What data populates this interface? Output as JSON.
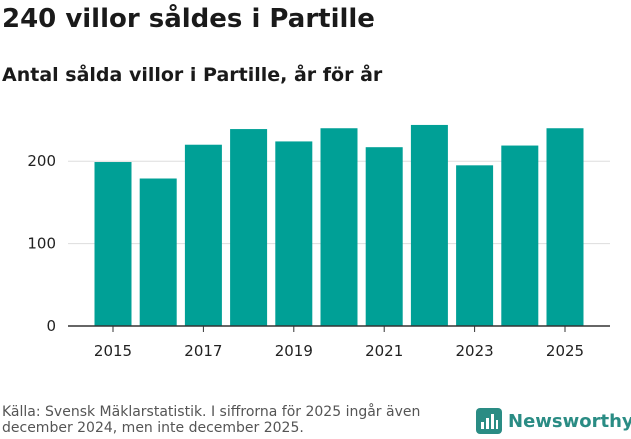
{
  "header": {
    "title": "240 villor såldes i Partille",
    "subtitle": "Antal sålda villor i Partille, år för år"
  },
  "footer": {
    "source": "Källa: Svensk Mäklarstatistik. I siffrorna för 2025 ingår även december 2024, men inte december 2025."
  },
  "brand": {
    "name": "Newsworthy"
  },
  "colors": {
    "bar": "#00a096",
    "grid": "#dddddd",
    "axis": "#333333",
    "brand": "#2a8c84"
  },
  "chart_data": {
    "type": "bar",
    "title": "240 villor såldes i Partille",
    "subtitle": "Antal sålda villor i Partille, år för år",
    "categories": [
      "2015",
      "2016",
      "2017",
      "2018",
      "2019",
      "2020",
      "2021",
      "2022",
      "2023",
      "2024",
      "2025"
    ],
    "values": [
      199,
      179,
      220,
      239,
      224,
      240,
      217,
      244,
      195,
      219,
      240
    ],
    "xlabel": "",
    "ylabel": "",
    "ylim": [
      0,
      250
    ],
    "yticks": [
      "0",
      "100",
      "200"
    ],
    "xticks": [
      "2015",
      "2017",
      "2019",
      "2021",
      "2023",
      "2025"
    ],
    "grid": true,
    "legend": "none"
  }
}
